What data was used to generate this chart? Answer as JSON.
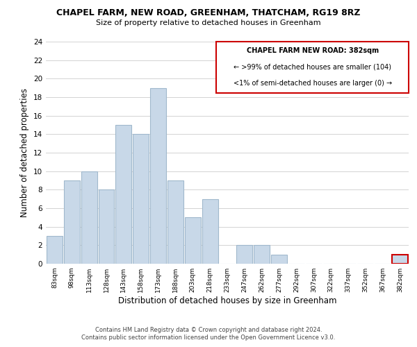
{
  "title": "CHAPEL FARM, NEW ROAD, GREENHAM, THATCHAM, RG19 8RZ",
  "subtitle": "Size of property relative to detached houses in Greenham",
  "xlabel": "Distribution of detached houses by size in Greenham",
  "ylabel": "Number of detached properties",
  "bar_labels": [
    "83sqm",
    "98sqm",
    "113sqm",
    "128sqm",
    "143sqm",
    "158sqm",
    "173sqm",
    "188sqm",
    "203sqm",
    "218sqm",
    "233sqm",
    "247sqm",
    "262sqm",
    "277sqm",
    "292sqm",
    "307sqm",
    "322sqm",
    "337sqm",
    "352sqm",
    "367sqm",
    "382sqm"
  ],
  "bar_heights": [
    3,
    9,
    10,
    8,
    15,
    14,
    19,
    9,
    5,
    7,
    0,
    2,
    2,
    1,
    0,
    0,
    0,
    0,
    0,
    0,
    1
  ],
  "bar_color": "#c8d8e8",
  "bar_edge_color": "#a0b8cc",
  "highlight_index": 20,
  "highlight_bar_edge_color": "#cc0000",
  "ylim": [
    0,
    24
  ],
  "yticks": [
    0,
    2,
    4,
    6,
    8,
    10,
    12,
    14,
    16,
    18,
    20,
    22,
    24
  ],
  "annotation_title": "CHAPEL FARM NEW ROAD: 382sqm",
  "annotation_line1": "← >99% of detached houses are smaller (104)",
  "annotation_line2": "<1% of semi-detached houses are larger (0) →",
  "annotation_box_edge": "#cc0000",
  "footer_line1": "Contains HM Land Registry data © Crown copyright and database right 2024.",
  "footer_line2": "Contains public sector information licensed under the Open Government Licence v3.0.",
  "background_color": "#ffffff",
  "grid_color": "#cccccc"
}
